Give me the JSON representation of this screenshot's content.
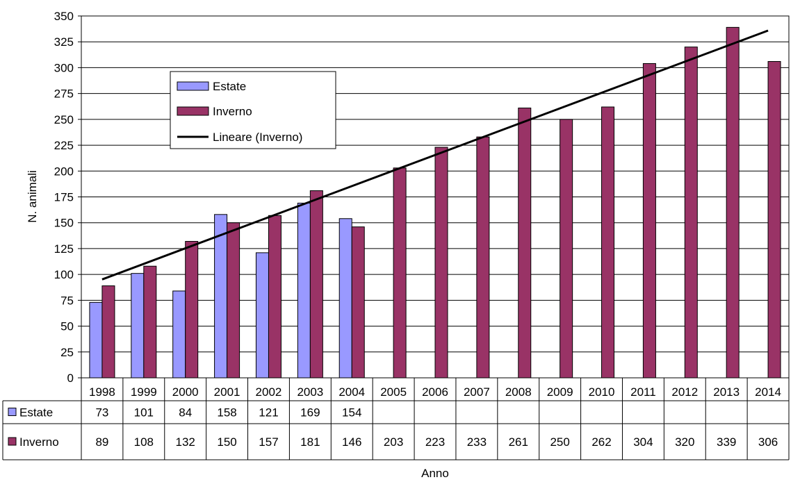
{
  "chart_data": {
    "type": "bar",
    "title": "",
    "xlabel": "Anno",
    "ylabel": "N. animali",
    "ylim": [
      0,
      350
    ],
    "ytick_step": 25,
    "grid": true,
    "legend_position": "upper-left inside plot",
    "categories": [
      "1998",
      "1999",
      "2000",
      "2001",
      "2002",
      "2003",
      "2004",
      "2005",
      "2006",
      "2007",
      "2008",
      "2009",
      "2010",
      "2011",
      "2012",
      "2013",
      "2014"
    ],
    "series": [
      {
        "name": "Estate",
        "color": "#9999ff",
        "values": [
          73,
          101,
          84,
          158,
          121,
          169,
          154,
          null,
          null,
          null,
          null,
          null,
          null,
          null,
          null,
          null,
          null
        ]
      },
      {
        "name": "Inverno",
        "color": "#993366",
        "values": [
          89,
          108,
          132,
          150,
          157,
          181,
          146,
          203,
          223,
          233,
          261,
          250,
          262,
          304,
          320,
          339,
          306
        ]
      }
    ],
    "trendline": {
      "name": "Lineare (Inverno)",
      "color": "#000000",
      "type": "linear",
      "of_series": "Inverno"
    },
    "data_table": true
  }
}
